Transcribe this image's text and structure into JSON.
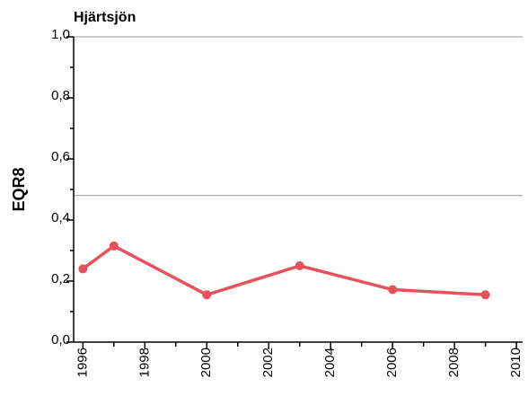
{
  "chart_data": {
    "type": "line",
    "title": "Hjärtsjön",
    "y_label": "EQR8",
    "x": [
      1996,
      1997,
      2000,
      2003,
      2006,
      2009
    ],
    "series": [
      {
        "name": "EQR8",
        "color": "#e5525b",
        "values": [
          0.24,
          0.315,
          0.155,
          0.25,
          0.172,
          0.155
        ]
      }
    ],
    "xlim": [
      1995.7,
      2010.2
    ],
    "xticks": [
      1996,
      1998,
      2000,
      2002,
      2004,
      2006,
      2008,
      2010
    ],
    "xminorticks": [
      1997,
      1999,
      2001,
      2003,
      2005,
      2007,
      2009
    ],
    "ylim": [
      0,
      1.0
    ],
    "yticks": [
      {
        "value": 0,
        "label": "0,0"
      },
      {
        "value": 0.2,
        "label": "0,2"
      },
      {
        "value": 0.4,
        "label": "0,4"
      },
      {
        "value": 0.6,
        "label": "0,6"
      },
      {
        "value": 0.8,
        "label": "0,8"
      },
      {
        "value": 1.0,
        "label": "1,0"
      }
    ],
    "yminorticks": [
      0.1,
      0.3,
      0.5,
      0.7,
      0.9
    ],
    "hlines": [
      1.0,
      0.48
    ]
  }
}
